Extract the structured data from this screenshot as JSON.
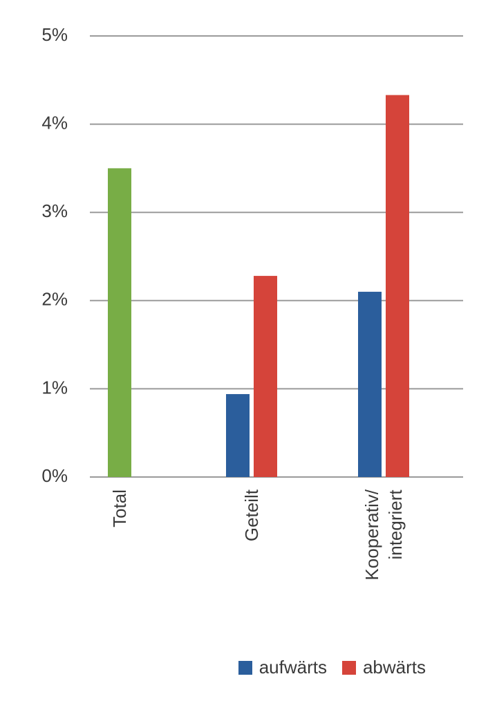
{
  "chart_data": {
    "type": "bar",
    "categories": [
      "Total",
      "Geteilt",
      "Kooperativ/\nintegriert"
    ],
    "series": [
      {
        "color": "#78ad46",
        "values": [
          3.5,
          null,
          null
        ]
      },
      {
        "name": "aufwärts",
        "color": "#2b5e9c",
        "values": [
          null,
          0.94,
          2.1
        ]
      },
      {
        "name": "abwärts",
        "color": "#d5443a",
        "values": [
          null,
          2.28,
          4.33
        ]
      }
    ],
    "ylim": [
      0,
      5
    ],
    "yticks": [
      {
        "value": 0,
        "label": "0%"
      },
      {
        "value": 1,
        "label": "1%"
      },
      {
        "value": 2,
        "label": "2%"
      },
      {
        "value": 3,
        "label": "3%"
      },
      {
        "value": 4,
        "label": "4%"
      },
      {
        "value": 5,
        "label": "5%"
      }
    ],
    "grid": true,
    "legend": "bottom"
  }
}
